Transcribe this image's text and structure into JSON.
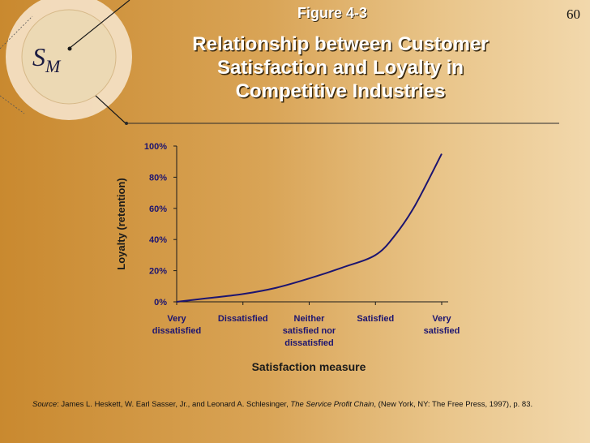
{
  "page_number": "60",
  "figure_label": "Figure 4-3",
  "title_lines": [
    "Relationship between Customer",
    "Satisfaction and Loyalty in",
    "Competitive Industries"
  ],
  "logo": {
    "letter_s": "S",
    "letter_m": "M"
  },
  "source": {
    "prefix": "Source",
    "authors": ": James L. Heskett, W. Earl Sasser, Jr., and Leonard A. Schlesinger, ",
    "book": "The Service Profit Chain",
    "details": ", (New York, NY: The Free Press, 1997), p. 83."
  },
  "chart_data": {
    "type": "line",
    "xlabel": "Satisfaction measure",
    "ylabel": "Loyalty (retention)",
    "ylim": [
      0,
      100
    ],
    "y_ticks": [
      "0%",
      "20%",
      "40%",
      "60%",
      "80%",
      "100%"
    ],
    "categories": [
      [
        "Very",
        "dissatisfied"
      ],
      [
        "Dissatisfied"
      ],
      [
        "Neither",
        "satisfied nor",
        "dissatisfied"
      ],
      [
        "Satisfied"
      ],
      [
        "Very",
        "satisfied"
      ]
    ],
    "series": [
      {
        "color": "#1c1470",
        "x": [
          0,
          0.5,
          1,
          1.5,
          2,
          2.5,
          3,
          3.3,
          3.6,
          4
        ],
        "y": [
          0,
          2.5,
          5,
          9,
          15,
          22,
          30,
          43,
          62,
          95
        ]
      }
    ],
    "grid": false
  }
}
